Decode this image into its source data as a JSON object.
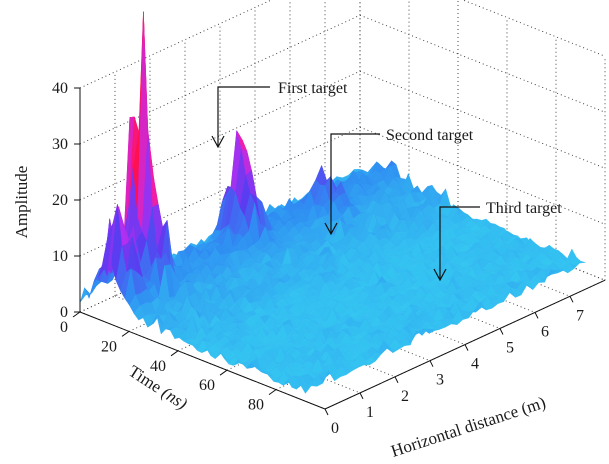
{
  "chart_data": {
    "type": "surface",
    "zlabel": "Amplitude",
    "ylabel": "Time (ns)",
    "xlabel": "Horizontal distance (m)",
    "x_ticks": [
      0,
      1,
      2,
      3,
      4,
      5,
      6,
      7
    ],
    "y_ticks": [
      0,
      20,
      40,
      60,
      80
    ],
    "z_ticks": [
      0,
      10,
      20,
      30,
      40
    ],
    "xlim": [
      0,
      8
    ],
    "ylim": [
      0,
      100
    ],
    "zlim": [
      0,
      40
    ],
    "grid": true,
    "colormap": [
      "#35d7f0",
      "#2f8df2",
      "#5a3cf0",
      "#b02ff0",
      "#f01ea8",
      "#ff1050"
    ],
    "annotations": [
      {
        "text": "First target",
        "x": 1.2,
        "y": 8,
        "z": 30
      },
      {
        "text": "Second target",
        "x": 3.9,
        "y": 10,
        "z": 18
      },
      {
        "text": "Third target",
        "x": 6.0,
        "y": 16,
        "z": 7
      }
    ],
    "peaks": [
      {
        "x": 0.3,
        "y": 12,
        "z": 20
      },
      {
        "x": 1.2,
        "y": 8,
        "z": 30
      },
      {
        "x": 3.9,
        "y": 10,
        "z": 18
      },
      {
        "x": 6.0,
        "y": 16,
        "z": 7
      }
    ]
  }
}
